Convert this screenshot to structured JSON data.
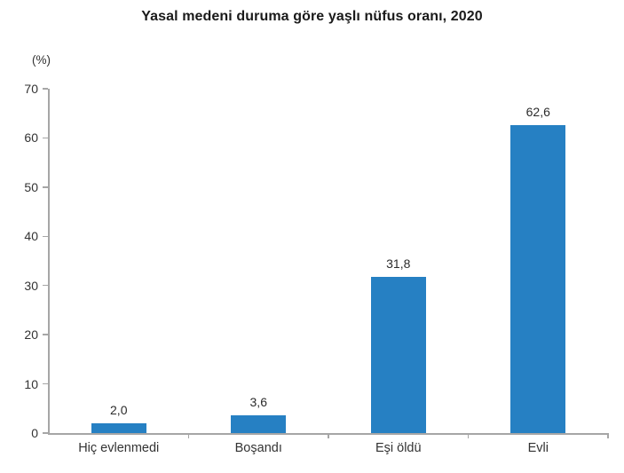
{
  "page": {
    "background_color": "#ffffff"
  },
  "chart_data": {
    "type": "bar",
    "title": "Yasal medeni duruma göre yaşlı nüfus oranı, 2020",
    "ylabel": "(%)",
    "xlabel": "",
    "categories": [
      "Hiç evlenmedi",
      "Boşandı",
      "Eşi öldü",
      "Evli"
    ],
    "values": [
      2.0,
      3.6,
      31.8,
      62.6
    ],
    "value_labels": [
      "2,0",
      "3,6",
      "31,8",
      "62,6"
    ],
    "ylim": [
      0,
      70
    ],
    "yticks": [
      0,
      10,
      20,
      30,
      40,
      50,
      60,
      70
    ],
    "grid": false,
    "legend": "none",
    "bar_color": "#2680c3",
    "axis_color": "#a6a6a6",
    "title_color": "#1a1a1a",
    "label_color": "#333333"
  }
}
